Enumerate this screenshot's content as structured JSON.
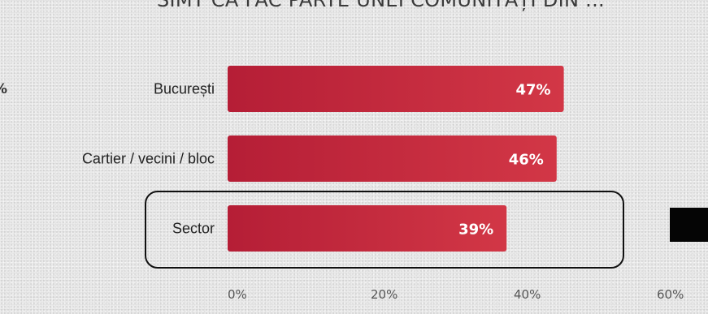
{
  "chart_data": {
    "type": "bar",
    "orientation": "horizontal",
    "title": "SIMT CĂ FAC PARTE UNEI COMUNITĂȚI DIN ...",
    "categories": [
      "București",
      "Cartier / vecini / bloc",
      "Sector"
    ],
    "values": [
      47,
      46,
      39
    ],
    "value_labels": [
      "47%",
      "46%",
      "39%"
    ],
    "xlim": [
      0,
      60
    ],
    "xticks": [
      0,
      20,
      40,
      60
    ],
    "xtick_labels": [
      "0%",
      "20%",
      "40%",
      "60%"
    ],
    "highlighted_category": "Sector",
    "grid": false,
    "bar_color": "#b51e36",
    "bar_color_light": "#d23746"
  },
  "edge_label": "%"
}
